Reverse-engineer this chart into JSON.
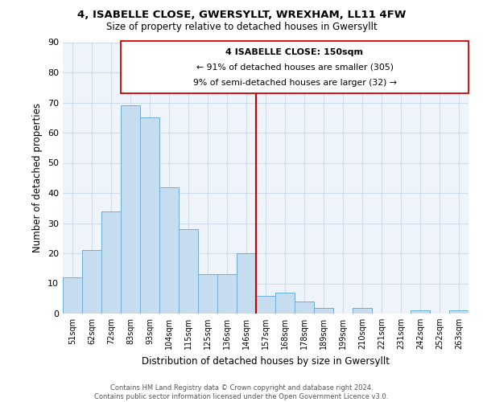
{
  "title1": "4, ISABELLE CLOSE, GWERSYLLT, WREXHAM, LL11 4FW",
  "title2": "Size of property relative to detached houses in Gwersyllt",
  "xlabel": "Distribution of detached houses by size in Gwersyllt",
  "ylabel": "Number of detached properties",
  "bar_labels": [
    "51sqm",
    "62sqm",
    "72sqm",
    "83sqm",
    "93sqm",
    "104sqm",
    "115sqm",
    "125sqm",
    "136sqm",
    "146sqm",
    "157sqm",
    "168sqm",
    "178sqm",
    "189sqm",
    "199sqm",
    "210sqm",
    "221sqm",
    "231sqm",
    "242sqm",
    "252sqm",
    "263sqm"
  ],
  "bar_values": [
    12,
    21,
    34,
    69,
    65,
    42,
    28,
    13,
    13,
    20,
    6,
    7,
    4,
    2,
    0,
    2,
    0,
    0,
    1,
    0,
    1
  ],
  "bar_color": "#c6ddf0",
  "bar_edge_color": "#6aaed6",
  "ylim": [
    0,
    90
  ],
  "yticks": [
    0,
    10,
    20,
    30,
    40,
    50,
    60,
    70,
    80,
    90
  ],
  "property_line_color": "#cc0000",
  "annotation_title": "4 ISABELLE CLOSE: 150sqm",
  "annotation_line1": "← 91% of detached houses are smaller (305)",
  "annotation_line2": "9% of semi-detached houses are larger (32) →",
  "footer1": "Contains HM Land Registry data © Crown copyright and database right 2024.",
  "footer2": "Contains public sector information licensed under the Open Government Licence v3.0.",
  "grid_color": "#d0dce8",
  "background_color": "#eef4fa"
}
